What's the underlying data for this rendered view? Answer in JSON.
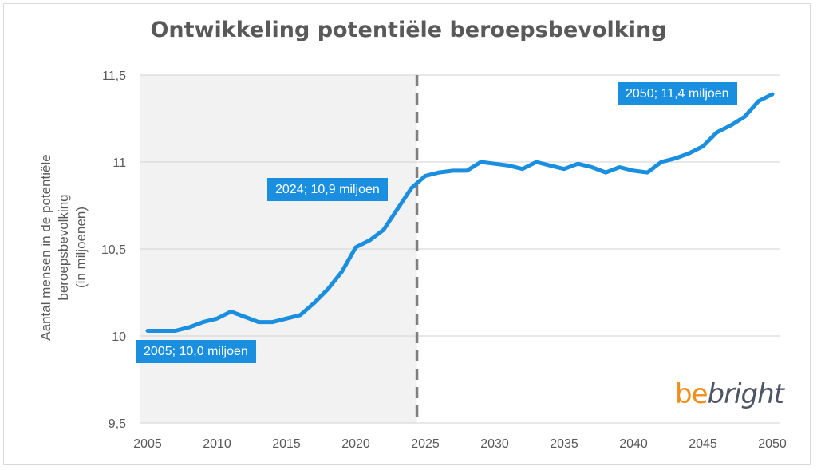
{
  "chart_data": {
    "type": "line",
    "title": "Ontwikkeling potentiële beroepsbevolking",
    "xlabel": "",
    "ylabel_lines": [
      "Aantal mensen in de potentiële",
      "beroepsbevolking",
      "(in miljoenen)"
    ],
    "xlim": [
      2005,
      2050
    ],
    "ylim": [
      9.5,
      11.5
    ],
    "xticks": [
      2005,
      2010,
      2015,
      2020,
      2025,
      2030,
      2035,
      2040,
      2045,
      2050
    ],
    "xtick_labels": [
      "2005",
      "2010",
      "2015",
      "2020",
      "2025",
      "2030",
      "2035",
      "2040",
      "2045",
      "2050"
    ],
    "yticks": [
      9.5,
      10,
      10.5,
      11,
      11.5
    ],
    "ytick_labels": [
      "9,5",
      "10",
      "10,5",
      "11",
      "11,5"
    ],
    "grid": "horizontal",
    "shaded_region": {
      "from": 2005,
      "to": 2024.4,
      "meaning": "historical"
    },
    "vertical_marker": {
      "x": 2024.4,
      "style": "dashed"
    },
    "series": [
      {
        "name": "Potentiële beroepsbevolking",
        "color": "#1a8fe0",
        "x": [
          2005,
          2006,
          2007,
          2008,
          2009,
          2010,
          2011,
          2012,
          2013,
          2014,
          2015,
          2016,
          2017,
          2018,
          2019,
          2020,
          2021,
          2022,
          2023,
          2024,
          2025,
          2026,
          2027,
          2028,
          2029,
          2030,
          2031,
          2032,
          2033,
          2034,
          2035,
          2036,
          2037,
          2038,
          2039,
          2040,
          2041,
          2042,
          2043,
          2044,
          2045,
          2046,
          2047,
          2048,
          2049,
          2050
        ],
        "values": [
          10.03,
          10.03,
          10.03,
          10.05,
          10.08,
          10.1,
          10.14,
          10.11,
          10.08,
          10.08,
          10.1,
          10.12,
          10.19,
          10.27,
          10.37,
          10.51,
          10.55,
          10.61,
          10.73,
          10.85,
          10.92,
          10.94,
          10.95,
          10.95,
          11.0,
          10.99,
          10.98,
          10.96,
          11.0,
          10.98,
          10.96,
          10.99,
          10.97,
          10.94,
          10.97,
          10.95,
          10.94,
          11.0,
          11.02,
          11.05,
          11.09,
          11.17,
          11.21,
          11.26,
          11.35,
          11.39
        ]
      }
    ],
    "annotations": [
      {
        "text": "2005; 10,0 miljoen",
        "x": 2005,
        "y": 10.0
      },
      {
        "text": "2024; 10,9 miljoen",
        "x": 2024,
        "y": 10.9
      },
      {
        "text": "2050; 11,4 miljoen",
        "x": 2050,
        "y": 11.4
      }
    ]
  },
  "logo": {
    "part1": "be",
    "part2": "bright"
  },
  "colors": {
    "line": "#1a8fe0",
    "label_bg": "#1a8fe0",
    "shade": "#f2f2f2",
    "grid": "#d9d9d9",
    "marker": "#7f7f7f",
    "text": "#595959",
    "logo_orange": "#f28c1a",
    "logo_dark": "#4e5566"
  }
}
